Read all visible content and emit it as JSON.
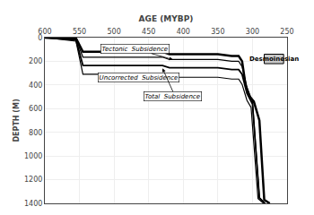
{
  "chart_data": {
    "type": "line",
    "xlabel": "AGE (MYBP)",
    "ylabel": "DEPTH (M)",
    "xlim": [
      600,
      250
    ],
    "ylim": [
      1400,
      0
    ],
    "xticks": [
      600,
      550,
      500,
      450,
      400,
      350,
      300,
      250
    ],
    "yticks": [
      0,
      200,
      400,
      600,
      800,
      1000,
      1200,
      1400
    ],
    "grid": true,
    "series": [
      {
        "color": "#000000",
        "x": [
          600,
          555,
          545,
          430,
          420,
          350,
          330,
          320,
          315,
          308,
          300,
          290,
          282
        ],
        "values": [
          0,
          10,
          165,
          165,
          185,
          185,
          200,
          200,
          245,
          420,
          540,
          1350,
          1400
        ]
      },
      {
        "color": "#000000",
        "x": [
          600,
          555,
          545,
          430,
          420,
          350,
          330,
          320,
          315,
          308,
          302,
          292,
          284
        ],
        "values": [
          0,
          30,
          310,
          310,
          335,
          335,
          350,
          350,
          395,
          530,
          590,
          1360,
          1400
        ]
      },
      {
        "color": "#000000",
        "x": [
          600,
          555,
          545,
          430,
          420,
          350,
          330,
          320,
          315,
          308,
          300,
          290,
          282
        ],
        "values": [
          0,
          20,
          235,
          235,
          255,
          255,
          270,
          270,
          310,
          470,
          560,
          1355,
          1400
        ]
      },
      {
        "color": "#000000",
        "x": [
          600,
          555,
          545,
          430,
          420,
          350,
          330,
          320,
          315,
          310,
          305,
          298,
          290,
          283,
          275
        ],
        "values": [
          0,
          5,
          120,
          120,
          140,
          140,
          155,
          155,
          200,
          400,
          490,
          540,
          700,
          1370,
          1400
        ]
      }
    ],
    "annotations": [
      {
        "text": "Tectonic  Subsidence",
        "x": 415,
        "y": 185,
        "text_x": 470,
        "text_y": 95
      },
      {
        "text": "Uncorrected  Subsidence",
        "x": 490,
        "y": 335,
        "text_x": 465,
        "text_y": 380
      },
      {
        "text": "Total  Subsidence",
        "x": 430,
        "y": 260,
        "text_x": 415,
        "text_y": 455
      }
    ],
    "box": {
      "text": "Desmoinesian",
      "x0": 283,
      "y0": 140,
      "x1": 255,
      "y1": 220,
      "color": "#c8c8c8",
      "edge_color": "#000000"
    }
  }
}
